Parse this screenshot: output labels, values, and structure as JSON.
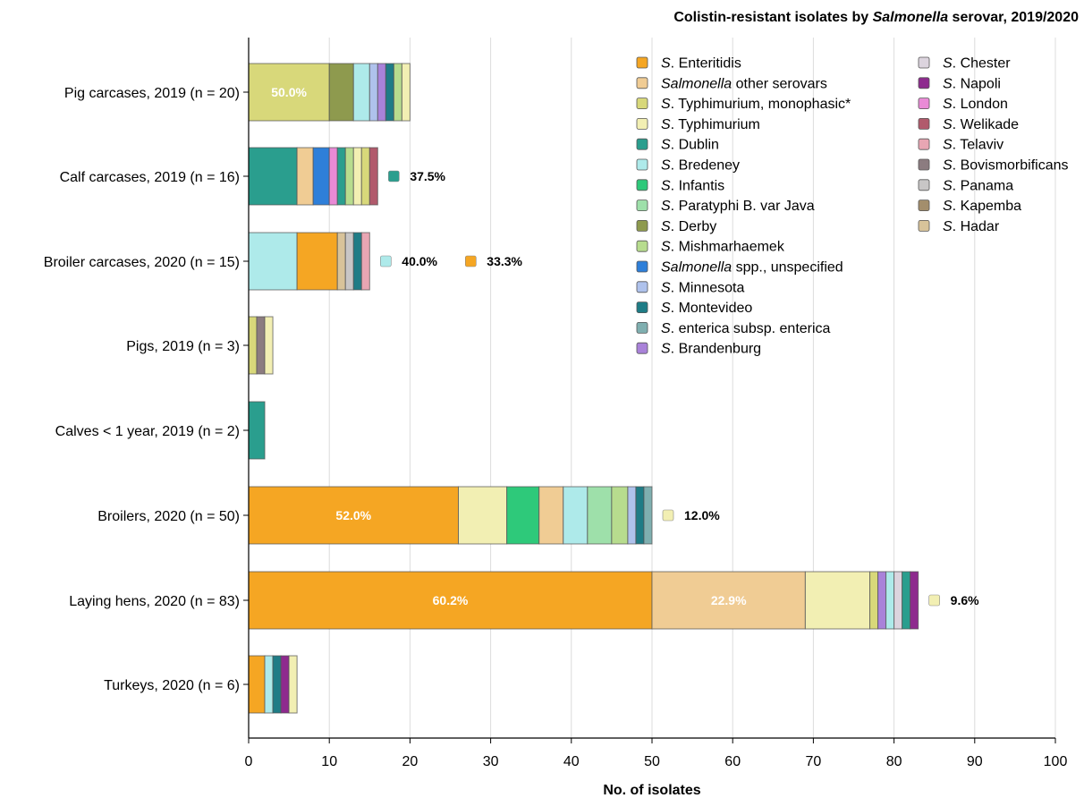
{
  "chart_data": {
    "type": "bar",
    "orientation": "horizontal",
    "stacked": true,
    "title_parts": [
      {
        "text": "Colistin-resistant isolates by ",
        "italic": false
      },
      {
        "text": "Salmonella",
        "italic": true
      },
      {
        "text": " serovar, 2019/2020",
        "italic": false
      }
    ],
    "xlabel": "No. of isolates",
    "ylabel": "",
    "xlim": [
      0,
      100
    ],
    "xticks": [
      "0",
      "10",
      "20",
      "30",
      "40",
      "50",
      "60",
      "70",
      "80",
      "90",
      "100"
    ],
    "grid": "vertical",
    "legend_position": "top-right",
    "categories": [
      "Pig carcases, 2019 (n = 20)",
      "Calf carcases, 2019 (n = 16)",
      "Broiler carcases, 2020 (n = 15)",
      "Pigs, 2019 (n = 3)",
      "Calves < 1 year, 2019 (n = 2)",
      "Broilers, 2020 (n = 50)",
      "Laying hens, 2020 (n = 83)",
      "Turkeys, 2020 (n = 6)"
    ],
    "series_colors": {
      "S. Enteritidis": "#F5A623",
      "Salmonella other serovars": "#F0CC94",
      "S. Typhimurium, monophasic*": "#D8D87A",
      "S. Typhimurium": "#F2EFB3",
      "S. Dublin": "#2A9E8E",
      "S. Bredeney": "#AEEAEA",
      "S. Infantis": "#2EC97A",
      "S. Paratyphi B. var Java": "#9EE0AA",
      "S. Derby": "#8E9A4E",
      "S. Mishmarhaemek": "#B7DC8E",
      "Salmonella spp., unspecified": "#2E7FD9",
      "S. Minnesota": "#AFC2EC",
      "S. Montevideo": "#1F7C86",
      "S. enterica subsp. enterica": "#7FAFB0",
      "S. Brandenburg": "#A982D9",
      "S. Chester": "#DCD4DE",
      "S. Napoli": "#8E2A8E",
      "S. London": "#E98AD6",
      "S. Welikade": "#B15A6C",
      "S. Telaviv": "#E8A6B3",
      "S. Bovismorbificans": "#8C7C80",
      "S. Panama": "#C8C6C6",
      "S. Kapemba": "#A38E6C",
      "S. Hadar": "#D8C39A"
    },
    "legend": [
      [
        {
          "text": "S",
          "italic": true
        },
        {
          "text": ". Enteritidis",
          "italic": false
        }
      ],
      [
        {
          "text": "Salmonella",
          "italic": true
        },
        {
          "text": " other serovars",
          "italic": false
        }
      ],
      [
        {
          "text": "S",
          "italic": true
        },
        {
          "text": ". Typhimurium, monophasic*",
          "italic": false
        }
      ],
      [
        {
          "text": "S",
          "italic": true
        },
        {
          "text": ". Typhimurium",
          "italic": false
        }
      ],
      [
        {
          "text": "S",
          "italic": true
        },
        {
          "text": ". Dublin",
          "italic": false
        }
      ],
      [
        {
          "text": "S",
          "italic": true
        },
        {
          "text": ". Bredeney",
          "italic": false
        }
      ],
      [
        {
          "text": "S",
          "italic": true
        },
        {
          "text": ". Infantis",
          "italic": false
        }
      ],
      [
        {
          "text": "S",
          "italic": true
        },
        {
          "text": ". Paratyphi B. var Java",
          "italic": false
        }
      ],
      [
        {
          "text": "S",
          "italic": true
        },
        {
          "text": ". Derby",
          "italic": false
        }
      ],
      [
        {
          "text": "S",
          "italic": true
        },
        {
          "text": ". Mishmarhaemek",
          "italic": false
        }
      ],
      [
        {
          "text": "Salmonella",
          "italic": true
        },
        {
          "text": " spp., unspecified",
          "italic": false
        }
      ],
      [
        {
          "text": "S",
          "italic": true
        },
        {
          "text": ". Minnesota",
          "italic": false
        }
      ],
      [
        {
          "text": "S",
          "italic": true
        },
        {
          "text": ". Montevideo",
          "italic": false
        }
      ],
      [
        {
          "text": "S",
          "italic": true
        },
        {
          "text": ". enterica subsp. enterica",
          "italic": false
        }
      ],
      [
        {
          "text": "S",
          "italic": true
        },
        {
          "text": ". Brandenburg",
          "italic": false
        }
      ],
      [
        {
          "text": "S",
          "italic": true
        },
        {
          "text": ". Chester",
          "italic": false
        }
      ],
      [
        {
          "text": "S",
          "italic": true
        },
        {
          "text": ". Napoli",
          "italic": false
        }
      ],
      [
        {
          "text": "S",
          "italic": true
        },
        {
          "text": ". London",
          "italic": false
        }
      ],
      [
        {
          "text": "S",
          "italic": true
        },
        {
          "text": ". Welikade",
          "italic": false
        }
      ],
      [
        {
          "text": "S",
          "italic": true
        },
        {
          "text": ". Telaviv",
          "italic": false
        }
      ],
      [
        {
          "text": "S",
          "italic": true
        },
        {
          "text": ". Bovismorbificans",
          "italic": false
        }
      ],
      [
        {
          "text": "S",
          "italic": true
        },
        {
          "text": ". Panama",
          "italic": false
        }
      ],
      [
        {
          "text": "S",
          "italic": true
        },
        {
          "text": ". Kapemba",
          "italic": false
        }
      ],
      [
        {
          "text": "S",
          "italic": true
        },
        {
          "text": ". Hadar",
          "italic": false
        }
      ]
    ],
    "bars": [
      {
        "category": "Pig carcases, 2019 (n = 20)",
        "segments": [
          {
            "series": "S. Typhimurium, monophasic*",
            "value": 10,
            "label": "50.0%"
          },
          {
            "series": "S. Derby",
            "value": 3
          },
          {
            "series": "S. Bredeney",
            "value": 2
          },
          {
            "series": "S. Minnesota",
            "value": 1
          },
          {
            "series": "S. Brandenburg",
            "value": 1
          },
          {
            "series": "S. Montevideo",
            "value": 1
          },
          {
            "series": "S. Mishmarhaemek",
            "value": 1
          },
          {
            "series": "S. Typhimurium",
            "value": 1
          }
        ]
      },
      {
        "category": "Calf carcases, 2019 (n = 16)",
        "segments": [
          {
            "series": "S. Dublin",
            "value": 6
          },
          {
            "series": "Salmonella other serovars",
            "value": 2
          },
          {
            "series": "Salmonella spp., unspecified",
            "value": 2
          },
          {
            "series": "S. London",
            "value": 1
          },
          {
            "series": "S. Dublin",
            "value": 1
          },
          {
            "series": "S. Mishmarhaemek",
            "value": 1
          },
          {
            "series": "S. Typhimurium",
            "value": 1
          },
          {
            "series": "S. Typhimurium, monophasic*",
            "value": 1
          },
          {
            "series": "S. Welikade",
            "value": 1
          }
        ],
        "side_labels": [
          {
            "series": "S. Dublin",
            "text": "37.5%"
          }
        ]
      },
      {
        "category": "Broiler carcases, 2020 (n = 15)",
        "segments": [
          {
            "series": "S. Bredeney",
            "value": 6
          },
          {
            "series": "S. Enteritidis",
            "value": 5
          },
          {
            "series": "S. Hadar",
            "value": 1
          },
          {
            "series": "S. Panama",
            "value": 1
          },
          {
            "series": "S. Montevideo",
            "value": 1
          },
          {
            "series": "S. Telaviv",
            "value": 1
          }
        ],
        "side_labels": [
          {
            "series": "S. Bredeney",
            "text": "40.0%"
          },
          {
            "series": "S. Enteritidis",
            "text": "33.3%"
          }
        ]
      },
      {
        "category": "Pigs, 2019 (n = 3)",
        "segments": [
          {
            "series": "S. Typhimurium, monophasic*",
            "value": 1
          },
          {
            "series": "S. Bovismorbificans",
            "value": 1
          },
          {
            "series": "S. Typhimurium",
            "value": 1
          }
        ]
      },
      {
        "category": "Calves < 1 year, 2019 (n = 2)",
        "segments": [
          {
            "series": "S. Dublin",
            "value": 2
          }
        ]
      },
      {
        "category": "Broilers, 2020 (n = 50)",
        "segments": [
          {
            "series": "S. Enteritidis",
            "value": 26,
            "label": "52.0%"
          },
          {
            "series": "S. Typhimurium",
            "value": 6
          },
          {
            "series": "S. Infantis",
            "value": 4
          },
          {
            "series": "Salmonella other serovars",
            "value": 3
          },
          {
            "series": "S. Bredeney",
            "value": 3
          },
          {
            "series": "S. Paratyphi B. var Java",
            "value": 3
          },
          {
            "series": "S. Mishmarhaemek",
            "value": 2
          },
          {
            "series": "S. Minnesota",
            "value": 1
          },
          {
            "series": "S. Montevideo",
            "value": 1
          },
          {
            "series": "S. enterica subsp. enterica",
            "value": 1
          }
        ],
        "side_labels": [
          {
            "series": "S. Typhimurium",
            "text": "12.0%"
          }
        ]
      },
      {
        "category": "Laying hens, 2020 (n = 83)",
        "segments": [
          {
            "series": "S. Enteritidis",
            "value": 50,
            "label": "60.2%"
          },
          {
            "series": "Salmonella other serovars",
            "value": 19,
            "label": "22.9%"
          },
          {
            "series": "S. Typhimurium",
            "value": 8
          },
          {
            "series": "S. Typhimurium, monophasic*",
            "value": 1
          },
          {
            "series": "S. Brandenburg",
            "value": 1
          },
          {
            "series": "S. Bredeney",
            "value": 1
          },
          {
            "series": "S. Chester",
            "value": 1
          },
          {
            "series": "S. Dublin",
            "value": 1
          },
          {
            "series": "S. Napoli",
            "value": 1
          }
        ],
        "side_labels": [
          {
            "series": "S. Typhimurium",
            "text": "9.6%"
          }
        ]
      },
      {
        "category": "Turkeys, 2020 (n = 6)",
        "segments": [
          {
            "series": "S. Enteritidis",
            "value": 2
          },
          {
            "series": "S. Bredeney",
            "value": 1
          },
          {
            "series": "S. Montevideo",
            "value": 1
          },
          {
            "series": "S. Napoli",
            "value": 1
          },
          {
            "series": "S. Typhimurium",
            "value": 1
          }
        ]
      }
    ]
  }
}
